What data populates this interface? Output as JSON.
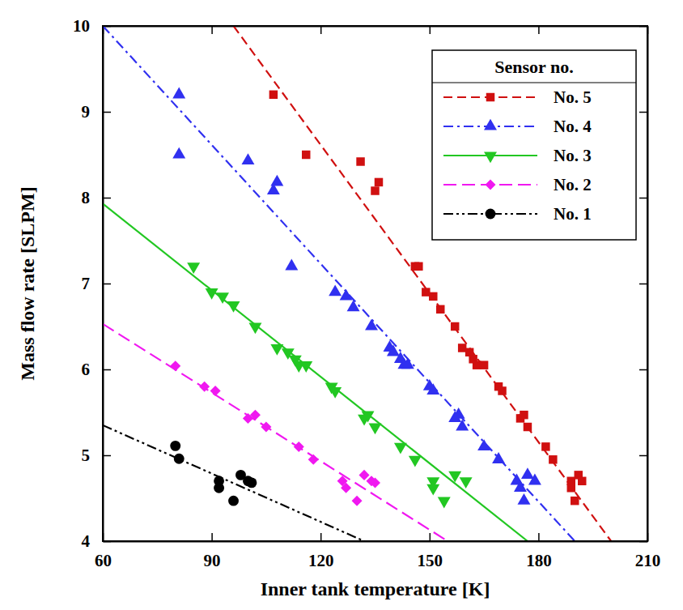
{
  "chart_data": {
    "type": "scatter",
    "x_label": "Inner tank temperature [K]",
    "y_label": "Mass flow rate [SLPM]",
    "legend_title": "Sensor no.",
    "legend": "upper right",
    "xlim": [
      60,
      210
    ],
    "xticks": [
      60,
      90,
      120,
      150,
      180,
      210
    ],
    "ylim": [
      4,
      10
    ],
    "yticks": [
      4,
      5,
      6,
      7,
      8,
      9,
      10
    ],
    "series": [
      {
        "name": "No. 5",
        "color": "#d01010",
        "marker": "square",
        "line_style": "dashed",
        "x": [
          107,
          116,
          131,
          135,
          136,
          146,
          147,
          149,
          151,
          153,
          157,
          159,
          161,
          162,
          163,
          165,
          169,
          170,
          175,
          176,
          177,
          182,
          184,
          189,
          189,
          190,
          191,
          192
        ],
        "values": [
          9.2,
          8.5,
          8.42,
          8.08,
          8.18,
          7.2,
          7.2,
          6.9,
          6.85,
          6.7,
          6.5,
          6.25,
          6.2,
          6.12,
          6.05,
          6.05,
          5.8,
          5.75,
          5.43,
          5.47,
          5.33,
          5.1,
          4.95,
          4.7,
          4.62,
          4.47,
          4.77,
          4.7
        ],
        "fit_x": [
          96,
          200
        ],
        "fit_values": [
          10,
          4
        ]
      },
      {
        "name": "No. 4",
        "color": "#3030f0",
        "marker": "triangle-up",
        "line_style": "dashdot",
        "x": [
          81,
          81,
          100,
          107,
          108,
          112,
          124,
          127,
          129,
          134,
          139,
          140,
          142,
          143,
          144,
          150,
          151,
          157,
          158,
          159,
          165,
          169,
          174,
          175,
          177,
          176,
          179
        ],
        "values": [
          9.2,
          8.5,
          8.43,
          8.08,
          8.18,
          7.2,
          6.9,
          6.85,
          6.72,
          6.5,
          6.25,
          6.2,
          6.12,
          6.05,
          6.05,
          5.8,
          5.75,
          5.43,
          5.47,
          5.33,
          5.1,
          4.95,
          4.7,
          4.62,
          4.77,
          4.47,
          4.7
        ],
        "fit_x": [
          60,
          190
        ],
        "fit_values": [
          10,
          4
        ]
      },
      {
        "name": "No. 3",
        "color": "#22c722",
        "marker": "triangle-down",
        "line_style": "solid",
        "x": [
          85,
          90,
          93,
          96,
          102,
          108,
          111,
          113,
          114,
          116,
          123,
          124,
          132,
          133,
          135,
          142,
          146,
          151,
          151,
          154,
          157,
          160
        ],
        "values": [
          7.2,
          6.9,
          6.85,
          6.75,
          6.5,
          6.25,
          6.2,
          6.12,
          6.05,
          6.05,
          5.8,
          5.75,
          5.43,
          5.47,
          5.33,
          5.1,
          4.95,
          4.7,
          4.62,
          4.47,
          4.77,
          4.7
        ],
        "fit_x": [
          60,
          177
        ],
        "fit_values": [
          7.93,
          4
        ]
      },
      {
        "name": "No. 2",
        "color": "#f018f0",
        "marker": "diamond",
        "line_style": "longdash",
        "x": [
          80,
          88,
          91,
          100,
          102,
          105,
          114,
          118,
          126,
          127,
          130,
          132,
          134,
          135
        ],
        "values": [
          6.04,
          5.8,
          5.75,
          5.43,
          5.47,
          5.33,
          5.1,
          4.95,
          4.7,
          4.62,
          4.47,
          4.77,
          4.7,
          4.68
        ],
        "fit_x": [
          60,
          155
        ],
        "fit_values": [
          6.53,
          4
        ]
      },
      {
        "name": "No. 1",
        "color": "#000000",
        "marker": "circle",
        "line_style": "dashdotdot",
        "x": [
          80,
          81,
          92,
          92,
          96,
          98,
          100,
          101
        ],
        "values": [
          5.11,
          4.96,
          4.7,
          4.62,
          4.47,
          4.77,
          4.7,
          4.68
        ],
        "fit_x": [
          60,
          132
        ],
        "fit_values": [
          5.35,
          4
        ]
      }
    ]
  }
}
